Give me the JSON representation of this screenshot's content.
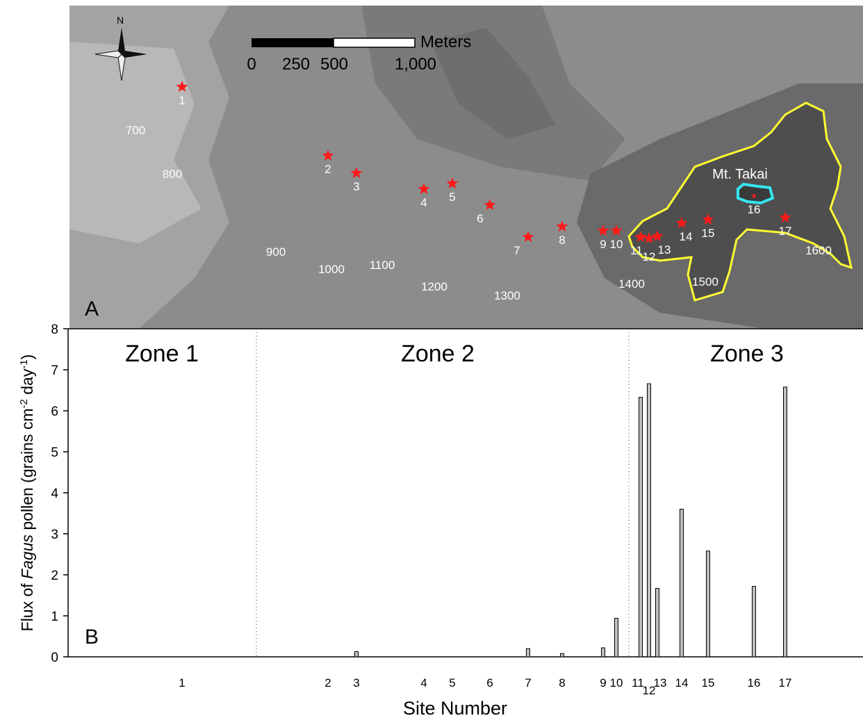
{
  "map": {
    "label": "A",
    "north": "N",
    "scale_unit": "Meters",
    "scale_labels": [
      "0",
      "250",
      "500",
      "1,000"
    ],
    "peak": "Mt. Takai",
    "contours": [
      "700",
      "800",
      "900",
      "1000",
      "1100",
      "1200",
      "1300",
      "1400",
      "1500",
      "1600"
    ]
  },
  "chart_data": {
    "type": "bar",
    "panel_label": "B",
    "ylabel_parts": [
      "Flux of ",
      "Fagus",
      " pollen (grains cm",
      "-2",
      " day",
      "-1",
      ")"
    ],
    "xlabel": "Site Number",
    "categories": [
      "1",
      "2",
      "3",
      "4",
      "5",
      "6",
      "7",
      "8",
      "9",
      "10",
      "11",
      "12",
      "13",
      "14",
      "15",
      "16",
      "17"
    ],
    "values": [
      0,
      0,
      0.13,
      0,
      0,
      0,
      0.2,
      0.08,
      0.22,
      0.94,
      6.33,
      6.66,
      1.67,
      3.6,
      2.58,
      1.72,
      6.58
    ],
    "color": "#c0c0c0",
    "ylim": [
      0,
      8
    ],
    "yticks": [
      0,
      1,
      2,
      3,
      4,
      5,
      6,
      7,
      8
    ],
    "zones": [
      "Zone 1",
      "Zone 2",
      "Zone 3"
    ]
  }
}
